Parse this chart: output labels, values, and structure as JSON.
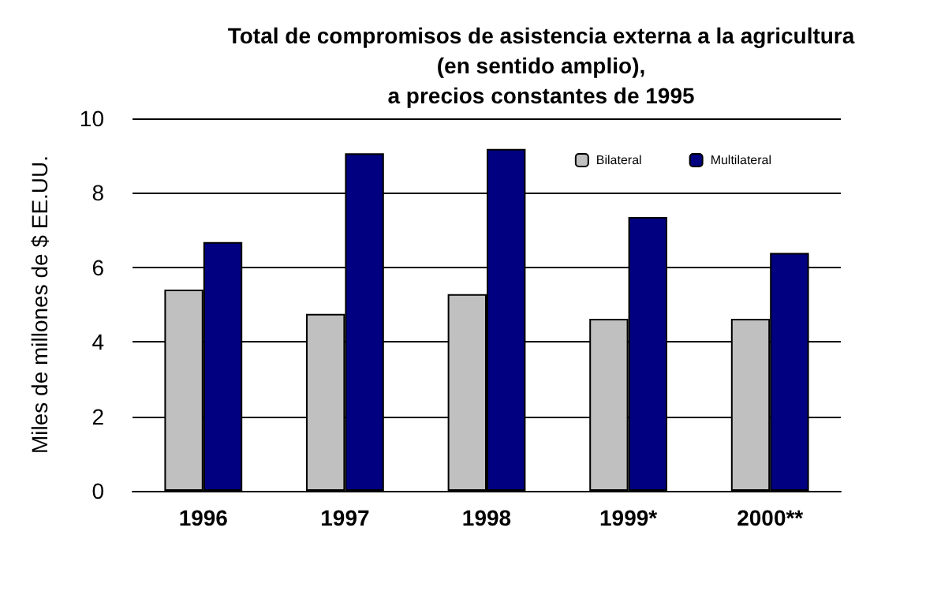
{
  "chart_data": {
    "type": "bar",
    "title": "Total de compromisos de asistencia externa a la agricultura\n(en sentido amplio),\na precios constantes de 1995",
    "ylabel": "Miles de millones de $ EE.UU.",
    "categories": [
      "1996",
      "1997",
      "1998",
      "1999*",
      "2000**"
    ],
    "series": [
      {
        "name": "Bilateral",
        "color": "#c0c0c0",
        "values": [
          5.4,
          4.75,
          5.28,
          4.62,
          4.62
        ]
      },
      {
        "name": "Multilateral",
        "color": "#000080",
        "values": [
          6.68,
          9.06,
          9.18,
          7.35,
          6.39
        ]
      }
    ],
    "ylim": [
      0,
      10
    ],
    "yticks": [
      0,
      2,
      4,
      6,
      8,
      10
    ],
    "grid": "y",
    "legend": "top right"
  }
}
